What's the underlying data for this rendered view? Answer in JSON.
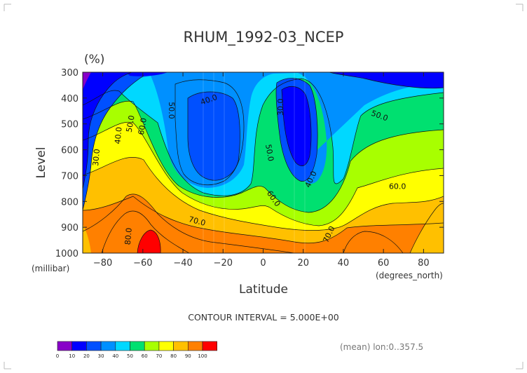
{
  "chart_data": {
    "type": "contour",
    "title": "RHUM_1992-03_NCEP",
    "units": "(%)",
    "xlabel": "Latitude",
    "x_unit_label": "(degrees_north)",
    "ylabel": "Level",
    "y_unit_label": "(millibar)",
    "xlim": [
      -90,
      90
    ],
    "ylim": [
      1000,
      300
    ],
    "x_ticks": [
      -80,
      -60,
      -40,
      -20,
      0,
      20,
      40,
      60,
      80
    ],
    "y_ticks": [
      300,
      400,
      500,
      600,
      700,
      800,
      900,
      1000
    ],
    "contour_interval_text": "CONTOUR INTERVAL = 5.000E+00",
    "mean_note": "(mean) lon:0..357.5",
    "contour_labels": [
      {
        "text": "30.0",
        "x": -83,
        "y": 630,
        "rot": -85
      },
      {
        "text": "40.0",
        "x": -72,
        "y": 545,
        "rot": -85
      },
      {
        "text": "50.0",
        "x": -66,
        "y": 500,
        "rot": -80
      },
      {
        "text": "60.0",
        "x": -60,
        "y": 510,
        "rot": -80
      },
      {
        "text": "80.0",
        "x": -67,
        "y": 935,
        "rot": -85
      },
      {
        "text": "70.0",
        "x": -33,
        "y": 878,
        "rot": 15
      },
      {
        "text": "50.0",
        "x": -46,
        "y": 448,
        "rot": 90
      },
      {
        "text": "40.0",
        "x": -27,
        "y": 408,
        "rot": -20
      },
      {
        "text": "50.0",
        "x": 3,
        "y": 612,
        "rot": 80
      },
      {
        "text": "60.0",
        "x": 5,
        "y": 790,
        "rot": 55
      },
      {
        "text": "30.0",
        "x": 9,
        "y": 435,
        "rot": -90
      },
      {
        "text": "40.0",
        "x": 24,
        "y": 715,
        "rot": -65
      },
      {
        "text": "70.0",
        "x": 33,
        "y": 928,
        "rot": -65
      },
      {
        "text": "50.0",
        "x": 58,
        "y": 470,
        "rot": 20
      },
      {
        "text": "60.0",
        "x": 67,
        "y": 743,
        "rot": 0
      }
    ],
    "colorbar": {
      "ticks": [
        "0",
        "10",
        "20",
        "30",
        "40",
        "50",
        "60",
        "70",
        "80",
        "90",
        "100"
      ],
      "colors": [
        "#8800c8",
        "#0000ff",
        "#0050ff",
        "#0090ff",
        "#00d8ff",
        "#00e070",
        "#a8ff00",
        "#ffff00",
        "#ffc000",
        "#ff8000",
        "#ff0000"
      ]
    }
  }
}
